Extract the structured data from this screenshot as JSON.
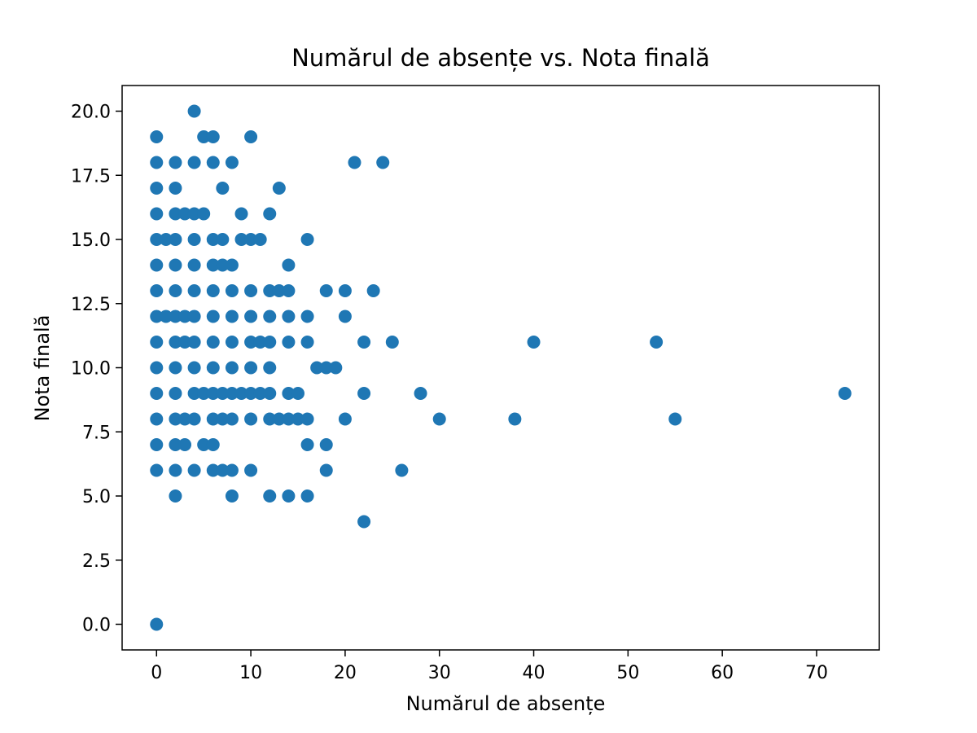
{
  "chart_data": {
    "type": "scatter",
    "title": "Numărul de absențe vs. Nota finală",
    "x_label": "Numărul de absențe",
    "y_label": "Nota finală",
    "xlim": [
      -3.65,
      76.65
    ],
    "ylim": [
      -1,
      21
    ],
    "xticks": [
      0,
      10,
      20,
      30,
      40,
      50,
      60,
      70
    ],
    "yticks": [
      {
        "value": 0,
        "label": "0.0"
      },
      {
        "value": 2.5,
        "label": "2.5"
      },
      {
        "value": 5,
        "label": "5.0"
      },
      {
        "value": 7.5,
        "label": "7.5"
      },
      {
        "value": 10,
        "label": "10.0"
      },
      {
        "value": 12.5,
        "label": "12.5"
      },
      {
        "value": 15,
        "label": "15.0"
      },
      {
        "value": 17.5,
        "label": "17.5"
      },
      {
        "value": 20,
        "label": "20.0"
      }
    ],
    "series": [
      {
        "color": "#1f77b4",
        "x": [
          4,
          0,
          5,
          6,
          10,
          0,
          2,
          4,
          6,
          8,
          21,
          24,
          0,
          2,
          7,
          13,
          0,
          2,
          3,
          4,
          5,
          9,
          12,
          0,
          1,
          2,
          4,
          6,
          7,
          9,
          10,
          11,
          16,
          0,
          2,
          4,
          6,
          7,
          8,
          14,
          0,
          2,
          4,
          6,
          8,
          10,
          12,
          13,
          14,
          18,
          20,
          23,
          0,
          1,
          2,
          3,
          4,
          6,
          8,
          10,
          12,
          14,
          16,
          20,
          0,
          2,
          3,
          4,
          6,
          8,
          10,
          11,
          12,
          14,
          16,
          22,
          25,
          40,
          53,
          0,
          2,
          4,
          6,
          8,
          10,
          12,
          17,
          18,
          19,
          0,
          2,
          4,
          5,
          6,
          7,
          8,
          9,
          10,
          11,
          12,
          14,
          15,
          22,
          28,
          73,
          0,
          2,
          3,
          4,
          6,
          7,
          8,
          10,
          12,
          13,
          14,
          15,
          16,
          20,
          30,
          38,
          55,
          0,
          2,
          3,
          5,
          6,
          16,
          18,
          0,
          2,
          4,
          6,
          7,
          8,
          10,
          18,
          26,
          2,
          8,
          12,
          14,
          16,
          22,
          0
        ],
        "values": [
          20,
          19,
          19,
          19,
          19,
          18,
          18,
          18,
          18,
          18,
          18,
          18,
          17,
          17,
          17,
          17,
          16,
          16,
          16,
          16,
          16,
          16,
          16,
          15,
          15,
          15,
          15,
          15,
          15,
          15,
          15,
          15,
          15,
          14,
          14,
          14,
          14,
          14,
          14,
          14,
          13,
          13,
          13,
          13,
          13,
          13,
          13,
          13,
          13,
          13,
          13,
          13,
          12,
          12,
          12,
          12,
          12,
          12,
          12,
          12,
          12,
          12,
          12,
          12,
          11,
          11,
          11,
          11,
          11,
          11,
          11,
          11,
          11,
          11,
          11,
          11,
          11,
          11,
          11,
          10,
          10,
          10,
          10,
          10,
          10,
          10,
          10,
          10,
          10,
          9,
          9,
          9,
          9,
          9,
          9,
          9,
          9,
          9,
          9,
          9,
          9,
          9,
          9,
          9,
          9,
          8,
          8,
          8,
          8,
          8,
          8,
          8,
          8,
          8,
          8,
          8,
          8,
          8,
          8,
          8,
          8,
          8,
          7,
          7,
          7,
          7,
          7,
          7,
          7,
          6,
          6,
          6,
          6,
          6,
          6,
          6,
          6,
          6,
          5,
          5,
          5,
          5,
          5,
          4,
          0
        ]
      }
    ]
  }
}
